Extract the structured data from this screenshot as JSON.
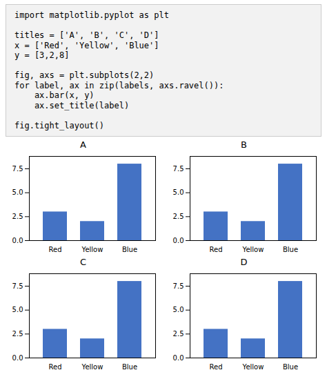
{
  "annotations": [
    [
      "import matplotlib.pyplot as plt"
    ],
    [
      "titles = ['A', 'B', 'C', 'D']",
      "x = ['Red', 'Yellow', 'Blue']",
      "y = [3,2,8]"
    ],
    [
      "fig, axs = plt.subplots(2,2)",
      "for label, ax in zip(labels, axs.ravel()):",
      "    ax.bar(x, y)",
      "    ax.set_title(label)"
    ],
    [
      "fig.tight_layout()"
    ]
  ],
  "chart_data": [
    {
      "type": "bar",
      "title": "A",
      "categories": [
        "Red",
        "Yellow",
        "Blue"
      ],
      "values": [
        3,
        2,
        8
      ],
      "color": "#4472C4",
      "ylim": [
        0,
        8.8
      ],
      "yticks": [
        {
          "value": 0,
          "label": "0.0"
        },
        2.5,
        {
          "value": 5,
          "label": "5.0"
        },
        7.5
      ],
      "grid": false
    },
    {
      "type": "bar",
      "title": "B",
      "categories": [
        "Red",
        "Yellow",
        "Blue"
      ],
      "values": [
        3,
        2,
        8
      ],
      "color": "#4472C4",
      "ylim": [
        0,
        8.8
      ],
      "yticks": [
        {
          "value": 0,
          "label": "0.0"
        },
        2.5,
        {
          "value": 5,
          "label": "5.0"
        },
        7.5
      ],
      "grid": false
    },
    {
      "type": "bar",
      "title": "C",
      "categories": [
        "Red",
        "Yellow",
        "Blue"
      ],
      "values": [
        3,
        2,
        8
      ],
      "color": "#4472C4",
      "ylim": [
        0,
        8.8
      ],
      "yticks": [
        {
          "value": 0,
          "label": "0.0"
        },
        2.5,
        {
          "value": 5,
          "label": "5.0"
        },
        7.5
      ],
      "grid": false
    },
    {
      "type": "bar",
      "title": "D",
      "categories": [
        "Red",
        "Yellow",
        "Blue"
      ],
      "values": [
        3,
        2,
        8
      ],
      "color": "#4472C4",
      "ylim": [
        0,
        8.8
      ],
      "yticks": [
        {
          "value": 0,
          "label": "0.0"
        },
        2.5,
        {
          "value": 5,
          "label": "5.0"
        },
        7.5
      ],
      "grid": false
    }
  ]
}
